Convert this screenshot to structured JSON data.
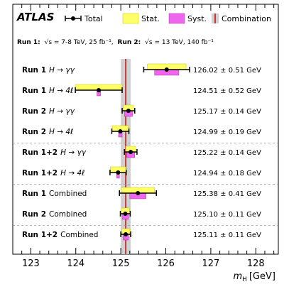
{
  "chart_data": {
    "type": "scatter",
    "experiment": "ATLAS",
    "legend": {
      "placement": "top",
      "entries": [
        "Total",
        "Stat.",
        "Syst.",
        "Combination"
      ]
    },
    "run_info": {
      "run1_label": "Run 1:",
      "run1_energy": "√s = 7-8 TeV, 25 fb⁻¹,",
      "run2_label": "Run 2:",
      "run2_energy": "√s = 13 TeV, 140 fb⁻¹"
    },
    "xlabel": "m_H [GeV]",
    "xlim": [
      122.6,
      128.5
    ],
    "xticks": [
      "123",
      "124",
      "125",
      "126",
      "127",
      "128"
    ],
    "combination": {
      "value": 125.11,
      "error": 0.11
    },
    "measurements": [
      {
        "run": "Run 1",
        "channel": "H → γγ",
        "value": 126.02,
        "total": 0.51,
        "stat": 0.43,
        "syst": 0.27,
        "label": "126.02 ± 0.51 GeV"
      },
      {
        "run": "Run 1",
        "channel": "H → 4ℓ",
        "value": 124.51,
        "total": 0.52,
        "stat": 0.52,
        "syst": 0.04,
        "label": "124.51 ± 0.52 GeV"
      },
      {
        "run": "Run 2",
        "channel": "H → γγ",
        "value": 125.17,
        "total": 0.14,
        "stat": 0.11,
        "syst": 0.09,
        "label": "125.17 ± 0.14 GeV"
      },
      {
        "run": "Run 2",
        "channel": "H → 4ℓ",
        "value": 124.99,
        "total": 0.19,
        "stat": 0.18,
        "syst": 0.04,
        "label": "124.99 ± 0.19 GeV"
      },
      {
        "run": "Run 1+2",
        "channel": "H → γγ",
        "value": 125.22,
        "total": 0.14,
        "stat": 0.11,
        "syst": 0.09,
        "label": "125.22 ± 0.14 GeV"
      },
      {
        "run": "Run 1+2",
        "channel": "H → 4ℓ",
        "value": 124.94,
        "total": 0.18,
        "stat": 0.17,
        "syst": 0.03,
        "label": "124.94 ± 0.18 GeV"
      },
      {
        "run": "Run 1",
        "channel": "Combined",
        "value": 125.38,
        "total": 0.41,
        "stat": 0.37,
        "syst": 0.18,
        "label": "125.38 ± 0.41 GeV"
      },
      {
        "run": "Run 2",
        "channel": "Combined",
        "value": 125.1,
        "total": 0.11,
        "stat": 0.09,
        "syst": 0.07,
        "label": "125.10 ± 0.11 GeV"
      },
      {
        "run": "Run 1+2",
        "channel": "Combined",
        "value": 125.11,
        "total": 0.11,
        "stat": 0.09,
        "syst": 0.06,
        "label": "125.11 ± 0.11 GeV",
        "highlight": true
      }
    ],
    "separators_after": [
      3,
      5,
      7
    ],
    "colors": {
      "stat": "#ffff66",
      "syst": "#ee66ee",
      "total": "#000000",
      "combination_band": "#d0d0d0",
      "combination_line": "#cc0000",
      "highlight": "#e8000b"
    }
  }
}
